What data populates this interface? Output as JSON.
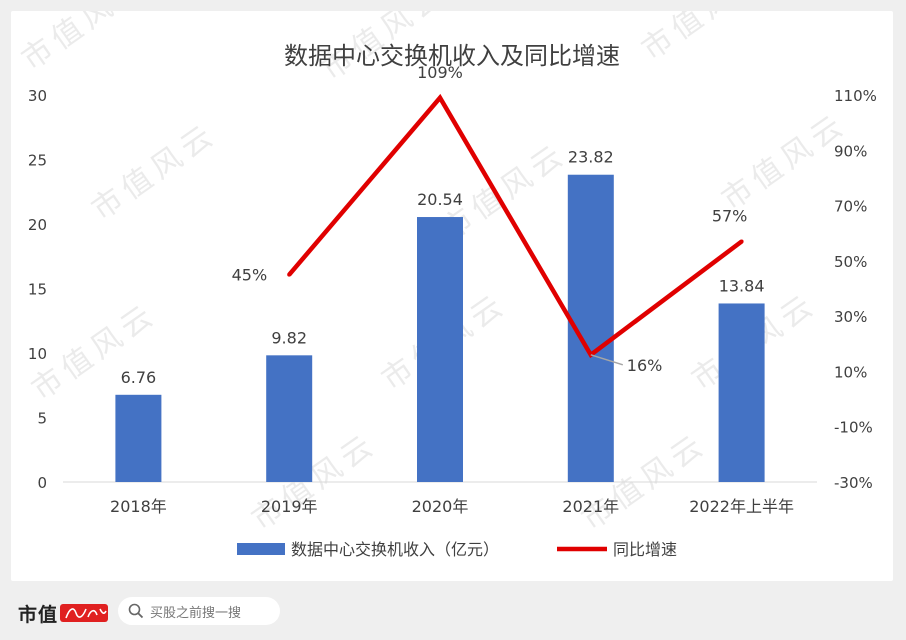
{
  "page": {
    "background": "#efefef"
  },
  "watermark": {
    "text": "市值风云"
  },
  "chart_data": {
    "type": "bar",
    "title": "数据中心交换机收入及同比增速",
    "categories": [
      "2018年",
      "2019年",
      "2020年",
      "2021年",
      "2022年上半年"
    ],
    "series": [
      {
        "name": "数据中心交换机收入（亿元）",
        "type": "bar",
        "axis": "left",
        "color": "#4472c4",
        "values": [
          6.76,
          9.82,
          20.54,
          23.82,
          13.84
        ],
        "labels": [
          "6.76",
          "9.82",
          "20.54",
          "23.82",
          "13.84"
        ]
      },
      {
        "name": "同比增速",
        "type": "line",
        "axis": "right",
        "color": "#e00000",
        "values": [
          null,
          45,
          109,
          16,
          57
        ],
        "labels": [
          "",
          "45%",
          "109%",
          "16%",
          "57%"
        ]
      }
    ],
    "y_left": {
      "min": 0,
      "max": 30,
      "ticks": [
        "0",
        "5",
        "10",
        "15",
        "20",
        "25",
        "30"
      ]
    },
    "y_right": {
      "min": -30,
      "max": 110,
      "ticks": [
        "-30%",
        "-10%",
        "10%",
        "30%",
        "50%",
        "70%",
        "90%",
        "110%"
      ]
    },
    "grid": false,
    "legend_position": "bottom"
  },
  "footer": {
    "logo_text": "市值",
    "search_placeholder": "买股之前搜一搜"
  }
}
